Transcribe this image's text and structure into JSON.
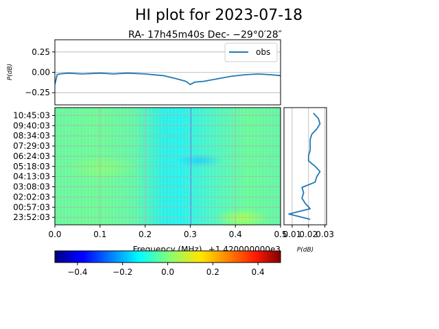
{
  "chart_data": [
    {
      "type": "line",
      "title": "HI plot for 2023-07-18",
      "subtitle": "RA- 17h45m40s Dec- −29°0′28″",
      "ylabel": "P(dB)",
      "ylim": [
        -0.4,
        0.4
      ],
      "xlim": [
        0,
        0.5
      ],
      "yticks": [
        "0.25",
        "0.00",
        "−0.25"
      ],
      "ytick_values": [
        0.25,
        0.0,
        -0.25
      ],
      "grid": true,
      "legend": "top-right",
      "series": [
        {
          "name": "obs",
          "color": "#1f77b4",
          "x": [
            0.0,
            0.005,
            0.01,
            0.03,
            0.06,
            0.1,
            0.13,
            0.16,
            0.2,
            0.24,
            0.27,
            0.29,
            0.3,
            0.31,
            0.33,
            0.36,
            0.39,
            0.42,
            0.45,
            0.48,
            0.5
          ],
          "values": [
            -0.15,
            -0.03,
            -0.02,
            -0.01,
            -0.02,
            -0.01,
            -0.02,
            -0.01,
            -0.02,
            -0.04,
            -0.08,
            -0.11,
            -0.15,
            -0.12,
            -0.11,
            -0.08,
            -0.05,
            -0.03,
            -0.02,
            -0.03,
            -0.04
          ]
        }
      ]
    },
    {
      "type": "heatmap",
      "xlabel": "Frequency (MHz)",
      "x_offset_label": "+1.420000000e3",
      "xlim": [
        0,
        0.5
      ],
      "xticks": [
        "0.0",
        "0.1",
        "0.2",
        "0.3",
        "0.4",
        "0.5"
      ],
      "ytick_labels": [
        "10:45:03",
        "09:40:03",
        "08:34:03",
        "07:29:03",
        "06:24:03",
        "05:18:03",
        "04:13:03",
        "03:08:03",
        "02:02:03",
        "00:57:03",
        "23:52:03"
      ],
      "colormap": "jet",
      "clim": [
        -0.5,
        0.5
      ],
      "colorbar_ticks": [
        "−0.4",
        "−0.2",
        "0.0",
        "0.2",
        "0.4"
      ],
      "colorbar_values": [
        -0.4,
        -0.2,
        0.0,
        0.2,
        0.4
      ],
      "grid": true
    },
    {
      "type": "line",
      "xlabel": "P(dB)",
      "xlim": [
        0.005,
        0.031
      ],
      "xticks": [
        "0.01",
        "0.02",
        "0.03"
      ],
      "xtick_values": [
        0.01,
        0.02,
        0.03
      ],
      "series": [
        {
          "color": "#1f77b4",
          "y_fraction": [
            0.0,
            0.05,
            0.1,
            0.15,
            0.2,
            0.25,
            0.3,
            0.35,
            0.4,
            0.45,
            0.5,
            0.55,
            0.6,
            0.65,
            0.7,
            0.75,
            0.8,
            0.85,
            0.9,
            0.95,
            1.0
          ],
          "values": [
            0.023,
            0.026,
            0.027,
            0.025,
            0.022,
            0.021,
            0.021,
            0.021,
            0.02,
            0.02,
            0.024,
            0.027,
            0.025,
            0.024,
            0.016,
            0.017,
            0.016,
            0.018,
            0.021,
            0.008,
            0.021
          ]
        }
      ]
    }
  ]
}
